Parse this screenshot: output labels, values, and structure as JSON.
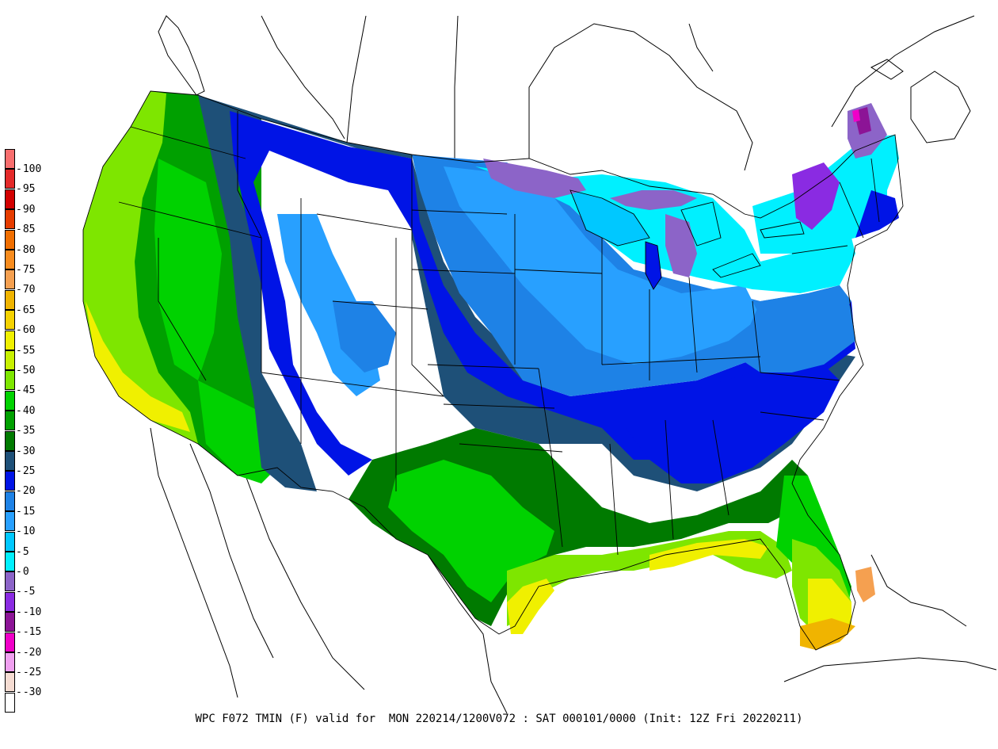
{
  "caption": "WPC F072 TMIN (F) valid for  MON 220214/1200V072 : SAT 000101/0000 (Init: 12Z Fri 20220211)",
  "legend": {
    "bins": [
      {
        "label": "100",
        "color": "#f86e6e"
      },
      {
        "label": "95",
        "color": "#e42a2a"
      },
      {
        "label": "90",
        "color": "#d20000"
      },
      {
        "label": "85",
        "color": "#e63c00"
      },
      {
        "label": "80",
        "color": "#f06e00"
      },
      {
        "label": "75",
        "color": "#f88c1e"
      },
      {
        "label": "70",
        "color": "#f5a050"
      },
      {
        "label": "65",
        "color": "#f0b400"
      },
      {
        "label": "60",
        "color": "#f5d200"
      },
      {
        "label": "55",
        "color": "#f0f000"
      },
      {
        "label": "50",
        "color": "#c8f000"
      },
      {
        "label": "45",
        "color": "#7ee600"
      },
      {
        "label": "40",
        "color": "#00d200"
      },
      {
        "label": "35",
        "color": "#00a000"
      },
      {
        "label": "30",
        "color": "#007a00"
      },
      {
        "label": "25",
        "color": "#1e5078"
      },
      {
        "label": "20",
        "color": "#0014e6"
      },
      {
        "label": "15",
        "color": "#1e82e6"
      },
      {
        "label": "10",
        "color": "#28a0ff"
      },
      {
        "label": "5",
        "color": "#00c8ff"
      },
      {
        "label": "0",
        "color": "#00f0ff"
      },
      {
        "label": "-5",
        "color": "#8c64c8"
      },
      {
        "label": "-10",
        "color": "#8a2be2"
      },
      {
        "label": "-15",
        "color": "#8c1496"
      },
      {
        "label": "-20",
        "color": "#f000c8"
      },
      {
        "label": "-25",
        "color": "#f0a0f0"
      },
      {
        "label": "-30",
        "color": "#f5dcd2"
      },
      {
        "label": "",
        "color": "#ffffff"
      }
    ]
  }
}
